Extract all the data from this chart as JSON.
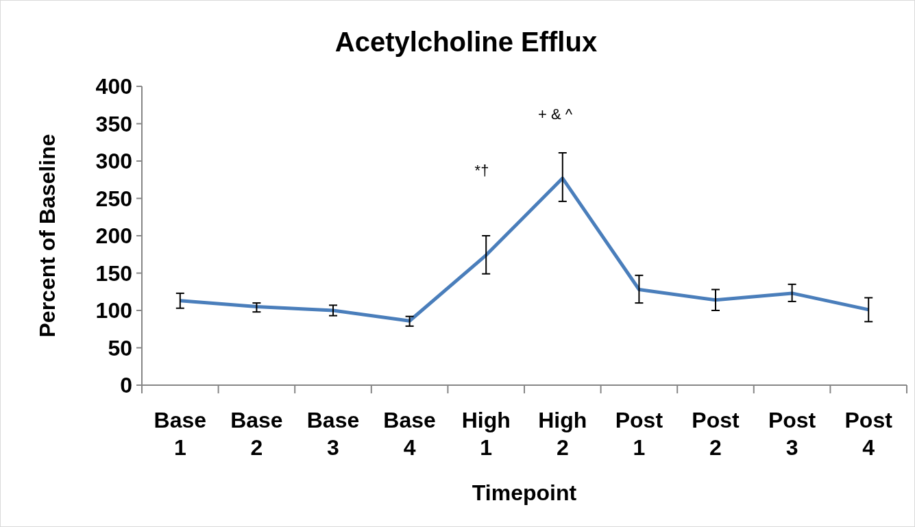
{
  "chart_data": {
    "type": "line",
    "title": "Acetylcholine Efflux",
    "xlabel": "Timepoint",
    "ylabel": "Percent of Baseline",
    "categories": [
      "Base 1",
      "Base 2",
      "Base 3",
      "Base 4",
      "High 1",
      "High 2",
      "Post 1",
      "Post 2",
      "Post 3",
      "Post 4"
    ],
    "series": [
      {
        "color": "#4a7ebb",
        "values": [
          113,
          105,
          100,
          86,
          174,
          277,
          128,
          114,
          123,
          101
        ],
        "errors": [
          [
            103,
            123
          ],
          [
            98,
            110
          ],
          [
            93,
            107
          ],
          [
            79,
            92
          ],
          [
            149,
            200
          ],
          [
            246,
            311
          ],
          [
            110,
            147
          ],
          [
            100,
            128
          ],
          [
            112,
            135
          ],
          [
            85,
            117
          ]
        ]
      }
    ],
    "ylim": [
      0,
      400
    ],
    "yticks": [
      0,
      50,
      100,
      150,
      200,
      250,
      300,
      350,
      400
    ],
    "grid": false,
    "marker": "none",
    "line_style": "solid",
    "annotations": [
      "*†",
      "+ & ^"
    ]
  }
}
